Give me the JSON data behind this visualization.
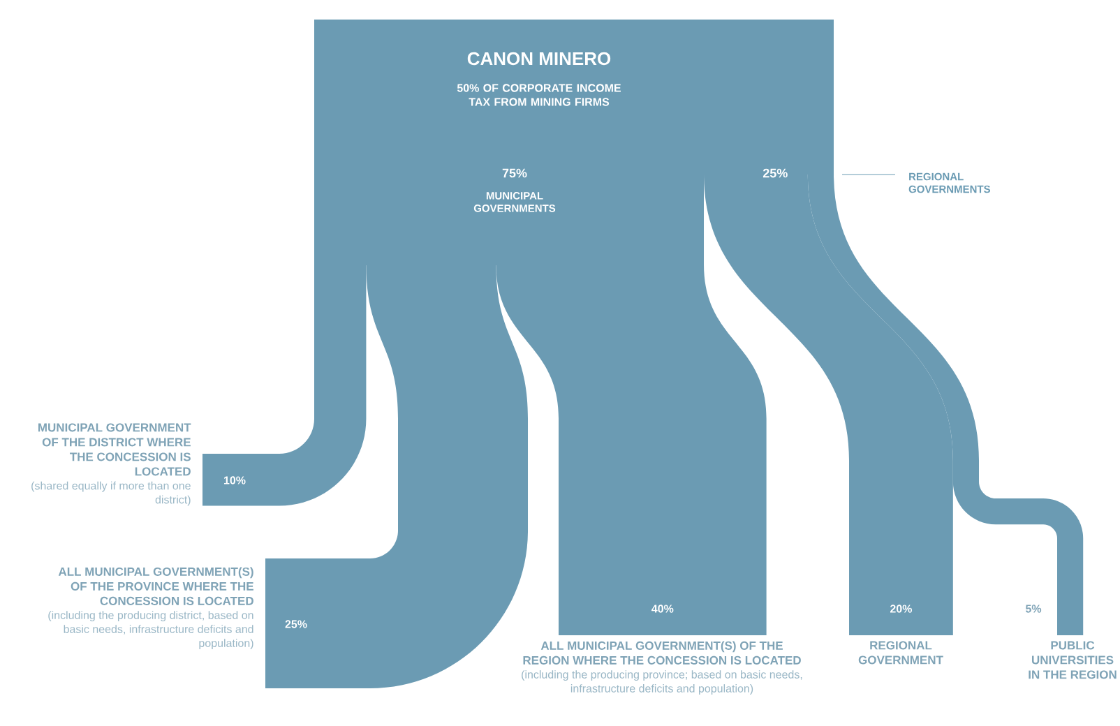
{
  "chart_data": {
    "type": "other",
    "title": "CANON MINERO",
    "subtitle": "50% OF CORPORATE INCOME TAX FROM MINING FIRMS",
    "categories": [
      "MUNICIPAL GOVERNMENT OF THE DISTRICT WHERE THE CONCESSION IS LOCATED",
      "ALL MUNICIPAL GOVERNMENT(S) OF THE PROVINCE WHERE THE CONCESSION IS LOCATED",
      "ALL MUNICIPAL GOVERNMENT(S) OF THE REGION WHERE THE CONCESSION IS LOCATED",
      "REGIONAL GOVERNMENT",
      "PUBLIC UNIVERSITIES IN THE REGION"
    ],
    "series": [
      {
        "color": "#6b9bb3",
        "values": [
          10,
          25,
          40,
          null,
          null
        ],
        "value_labels": [
          "10%",
          "25%",
          "40%",
          null,
          null
        ]
      },
      {
        "color": "#6b9bb3",
        "values": [
          null,
          null,
          null,
          20,
          5
        ],
        "value_labels": [
          null,
          null,
          null,
          "20%",
          "5%"
        ]
      }
    ],
    "totals": [
      "75%",
      "25%"
    ],
    "annotations": [
      "(shared equally if more than one district)",
      "(including the producing district, based on basic needs, infrastructure deficits and population)",
      "(including the producing province; based on basic needs, infrastructure deficits and population)",
      "MUNICIPAL GOVERNMENTS",
      "REGIONAL GOVERNMENTS"
    ]
  }
}
